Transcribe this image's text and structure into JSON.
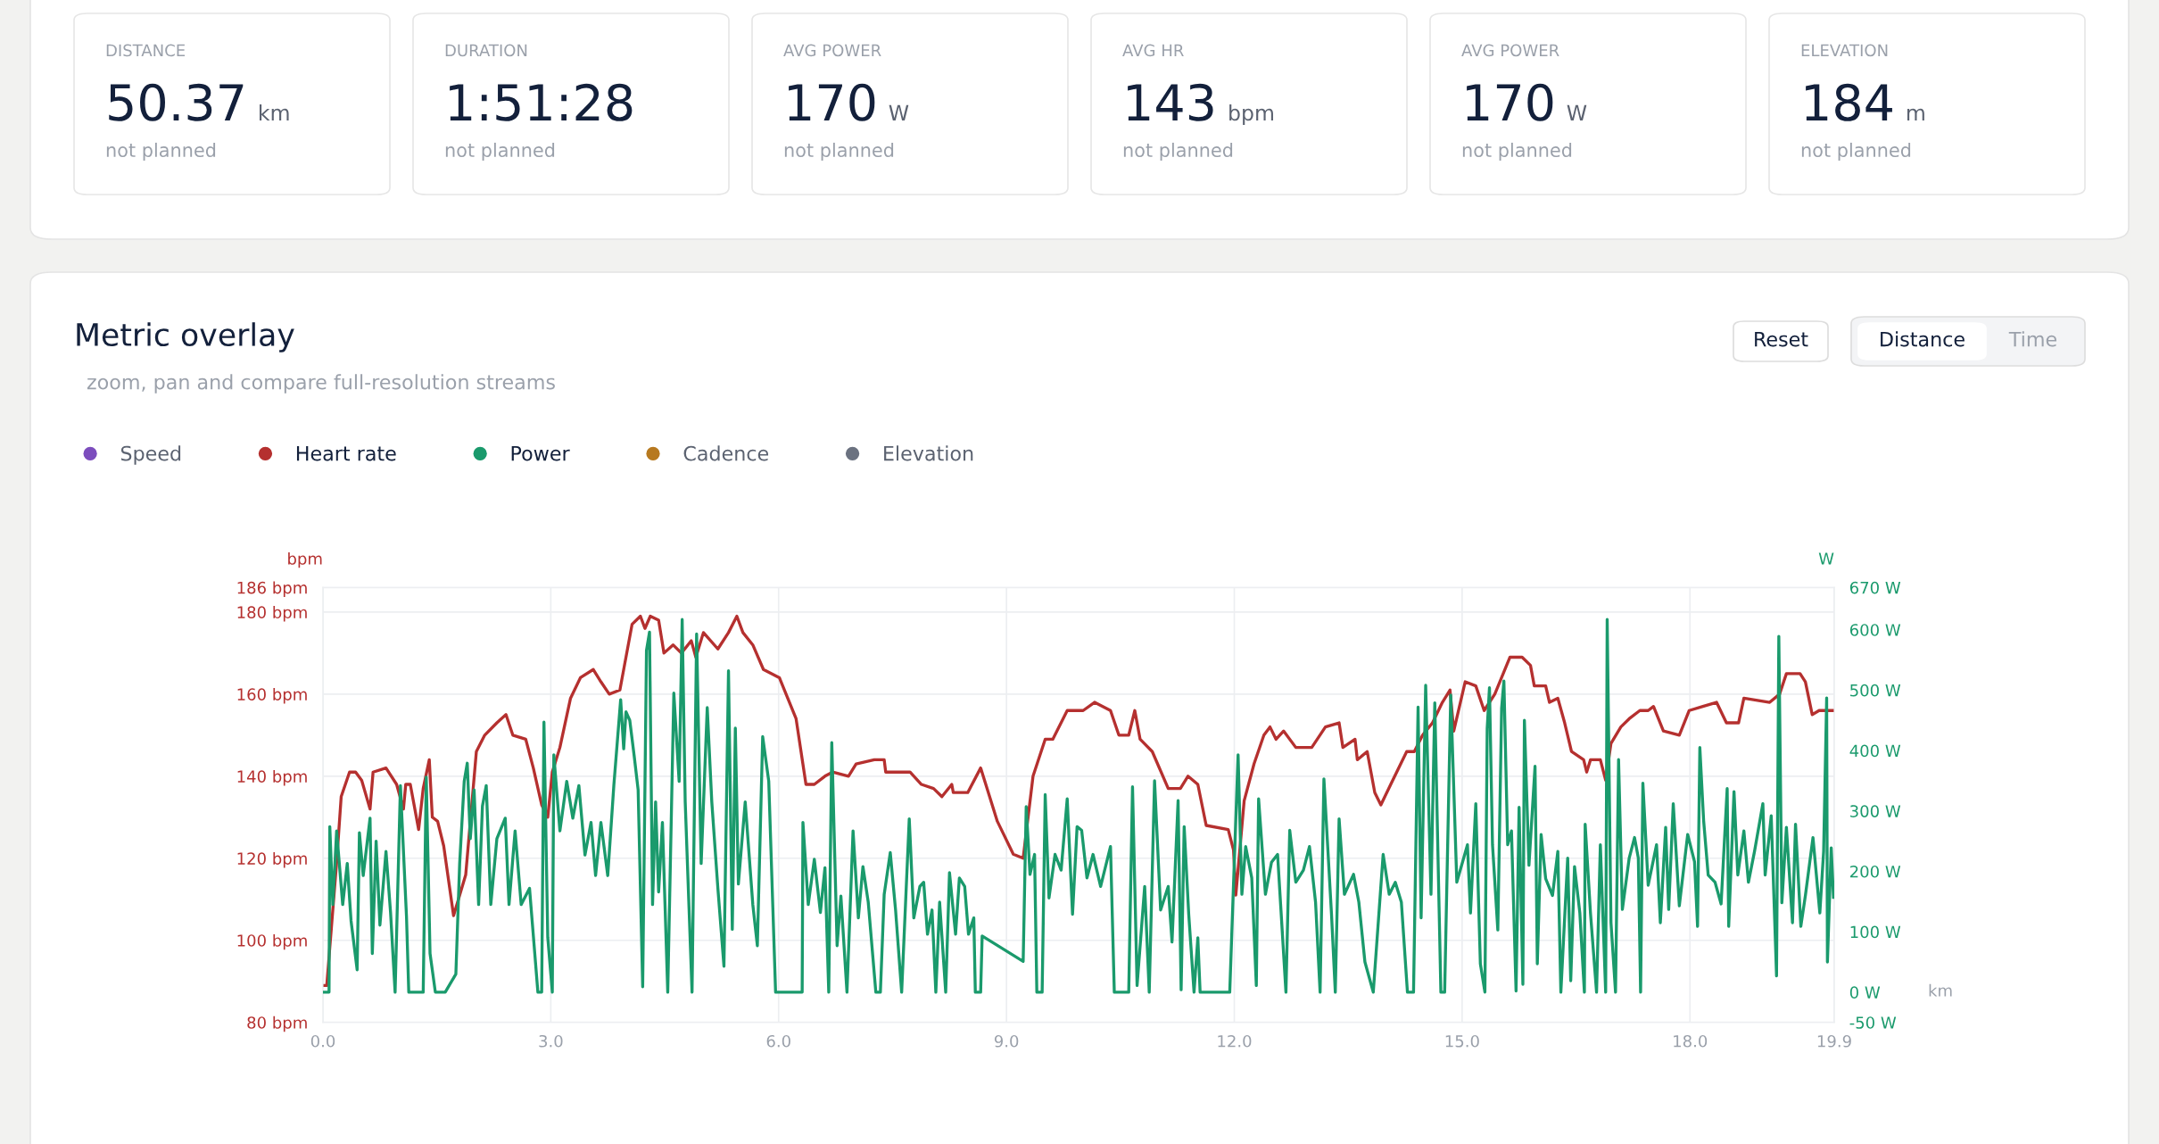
{
  "chart_data": [
    {
      "type": "other",
      "categories": [
        "DISTANCE",
        "DURATION",
        "AVG POWER",
        "AVG HR",
        "AVG POWER",
        "ELEVATION"
      ],
      "value_labels": [
        "50.37 km",
        "1:51:28",
        "170 W",
        "143 bpm",
        "170 W",
        "184 m"
      ],
      "annotations": [
        "not planned",
        "not planned",
        "not planned",
        "not planned",
        "not planned",
        "not planned"
      ]
    },
    {
      "type": "line",
      "title": "Metric overlay",
      "subtitle": "zoom, pan and compare full-resolution streams",
      "annotations": [
        "Reset",
        "Distance",
        "Time"
      ],
      "xlabel": "km",
      "ylabel": "bpm",
      "y2label": "W",
      "xlim": [
        0,
        19.9
      ],
      "xticks": [
        {
          "value": 0,
          "label": "0.0"
        },
        {
          "value": 3,
          "label": "3.0"
        },
        {
          "value": 6,
          "label": "6.0"
        },
        {
          "value": 9,
          "label": "9.0"
        },
        {
          "value": 12,
          "label": "12.0"
        },
        {
          "value": 15,
          "label": "15.0"
        },
        {
          "value": 18,
          "label": "18.0"
        },
        {
          "value": 19.9,
          "label": "19.9"
        }
      ],
      "ylim": [
        80,
        186
      ],
      "yticks": [
        {
          "value": 80,
          "label": "80 bpm"
        },
        {
          "value": 100,
          "label": "100 bpm"
        },
        {
          "value": 120,
          "label": "120 bpm"
        },
        {
          "value": 140,
          "label": "140 bpm"
        },
        {
          "value": 160,
          "label": "160 bpm"
        },
        {
          "value": 180,
          "label": "180 bpm"
        },
        {
          "value": 186,
          "label": "186 bpm"
        }
      ],
      "y2lim": [
        -50,
        670
      ],
      "y2ticks": [
        {
          "value": -50,
          "label": "-50 W"
        },
        {
          "value": 0,
          "label": "0 W"
        },
        {
          "value": 100,
          "label": "100 W"
        },
        {
          "value": 200,
          "label": "200 W"
        },
        {
          "value": 300,
          "label": "300 W"
        },
        {
          "value": 400,
          "label": "400 W"
        },
        {
          "value": 500,
          "label": "500 W"
        },
        {
          "value": 600,
          "label": "600 W"
        },
        {
          "value": 670,
          "label": "670 W"
        }
      ],
      "grid": true,
      "legend": "top left",
      "series": [
        {
          "name": "Speed",
          "color": "#7c4dbd"
        },
        {
          "name": "Heart rate",
          "color": "#b5302f",
          "x": [
            0,
            0.05,
            0.18,
            0.24,
            0.35,
            0.43,
            0.51,
            0.62,
            0.66,
            0.83,
            0.97,
            1.06,
            1.09,
            1.15,
            1.26,
            1.32,
            1.4,
            1.44,
            1.51,
            1.59,
            1.72,
            1.88,
            2.02,
            2.13,
            2.29,
            2.41,
            2.5,
            2.67,
            2.77,
            2.88,
            2.96,
            3.02,
            3.12,
            3.26,
            3.39,
            3.56,
            3.66,
            3.77,
            3.91,
            3.96,
            4.07,
            4.18,
            4.24,
            4.31,
            4.42,
            4.49,
            4.61,
            4.72,
            4.85,
            4.91,
            5.01,
            5.2,
            5.34,
            5.45,
            5.53,
            5.66,
            5.8,
            6.01,
            6.23,
            6.36,
            6.47,
            6.61,
            6.71,
            6.92,
            7.02,
            7.26,
            7.39,
            7.41,
            7.73,
            7.88,
            8.04,
            8.15,
            8.28,
            8.3,
            8.49,
            8.66,
            8.88,
            9.09,
            9.22,
            9.35,
            9.51,
            9.61,
            9.8,
            10.01,
            10.16,
            10.37,
            10.48,
            10.61,
            10.69,
            10.76,
            10.92,
            11.13,
            11.29,
            11.39,
            11.52,
            11.63,
            11.92,
            11.99,
            12.02,
            12.13,
            12.26,
            12.39,
            12.47,
            12.55,
            12.65,
            12.81,
            13.02,
            13.2,
            13.38,
            13.43,
            13.59,
            13.62,
            13.75,
            13.85,
            13.93,
            14.06,
            14.27,
            14.37,
            14.48,
            14.61,
            14.74,
            14.84,
            14.89,
            15.04,
            15.18,
            15.29,
            15.43,
            15.63,
            15.79,
            15.9,
            15.95,
            16.1,
            16.15,
            16.26,
            16.35,
            16.44,
            16.6,
            16.64,
            16.69,
            16.82,
            16.89,
            16.96,
            17.09,
            17.2,
            17.34,
            17.45,
            17.52,
            17.65,
            17.86,
            17.99,
            18.17,
            18.35,
            18.48,
            18.64,
            18.71,
            19.05,
            19.18,
            19.27,
            19.45,
            19.52,
            19.61,
            19.7,
            19.88
          ],
          "values": [
            89,
            89,
            119,
            135,
            141,
            141,
            139,
            132,
            141,
            142,
            138,
            132,
            138,
            138,
            127,
            137,
            144,
            130,
            129,
            123,
            106,
            116,
            146,
            150,
            153,
            155,
            150,
            149,
            142,
            133,
            130,
            141,
            147,
            159,
            164,
            166,
            163,
            160,
            161,
            166,
            177,
            179,
            176,
            179,
            178,
            170,
            172,
            170,
            173,
            169,
            175,
            171,
            175,
            179,
            175,
            172,
            166,
            164,
            154,
            138,
            138,
            140,
            141,
            140,
            143,
            144,
            144,
            141,
            141,
            138,
            137,
            135,
            138,
            136,
            136,
            142,
            129,
            121,
            120,
            140,
            149,
            149,
            156,
            156,
            158,
            156,
            150,
            150,
            156,
            149,
            146,
            137,
            137,
            140,
            138,
            128,
            127,
            122,
            111,
            134,
            143,
            150,
            152,
            149,
            151,
            147,
            147,
            152,
            153,
            147,
            149,
            144,
            146,
            136,
            133,
            138,
            146,
            146,
            150,
            153,
            158,
            161,
            151,
            163,
            162,
            156,
            160,
            169,
            169,
            167,
            162,
            162,
            158,
            159,
            153,
            146,
            144,
            141,
            144,
            144,
            139,
            148,
            152,
            154,
            156,
            156,
            157,
            151,
            150,
            156,
            157,
            158,
            153,
            153,
            159,
            158,
            160,
            165,
            165,
            163,
            155,
            156,
            156
          ]
        },
        {
          "name": "Power",
          "color": "#1a9a6c",
          "axis": "y2",
          "x": [
            0,
            0.08,
            0.09,
            0.13,
            0.18,
            0.26,
            0.32,
            0.37,
            0.45,
            0.48,
            0.53,
            0.62,
            0.65,
            0.7,
            0.75,
            0.83,
            0.89,
            0.95,
            1.02,
            1.1,
            1.13,
            1.32,
            1.36,
            1.41,
            1.48,
            1.61,
            1.75,
            1.8,
            1.86,
            1.9,
            1.94,
            1.99,
            2.05,
            2.1,
            2.15,
            2.21,
            2.29,
            2.4,
            2.45,
            2.53,
            2.61,
            2.72,
            2.83,
            2.88,
            2.91,
            2.96,
            3.02,
            3.04,
            3.12,
            3.21,
            3.29,
            3.37,
            3.45,
            3.53,
            3.59,
            3.66,
            3.75,
            3.83,
            3.92,
            3.96,
            3.99,
            4.04,
            4.1,
            4.15,
            4.21,
            4.26,
            4.3,
            4.34,
            4.38,
            4.42,
            4.47,
            4.54,
            4.62,
            4.69,
            4.73,
            4.77,
            4.86,
            4.92,
            4.98,
            5.06,
            5.12,
            5.2,
            5.28,
            5.34,
            5.39,
            5.43,
            5.47,
            5.56,
            5.66,
            5.72,
            5.79,
            5.87,
            5.96,
            6.31,
            6.32,
            6.39,
            6.47,
            6.55,
            6.61,
            6.66,
            6.7,
            6.77,
            6.82,
            6.9,
            6.98,
            7.05,
            7.11,
            7.18,
            7.28,
            7.34,
            7.39,
            7.47,
            7.54,
            7.62,
            7.72,
            7.78,
            7.86,
            7.91,
            7.96,
            8.02,
            8.07,
            8.12,
            8.2,
            8.25,
            8.33,
            8.38,
            8.45,
            8.5,
            8.57,
            8.59,
            8.66,
            8.68,
            9.22,
            9.26,
            9.31,
            9.37,
            9.4,
            9.47,
            9.51,
            9.56,
            9.64,
            9.72,
            9.8,
            9.87,
            9.93,
            9.99,
            10.06,
            10.14,
            10.24,
            10.37,
            10.42,
            10.61,
            10.66,
            10.72,
            10.82,
            10.88,
            10.95,
            11.03,
            11.13,
            11.18,
            11.26,
            11.3,
            11.34,
            11.4,
            11.47,
            11.52,
            11.55,
            11.94,
            11.99,
            12.05,
            12.1,
            12.15,
            12.23,
            12.29,
            12.32,
            12.41,
            12.49,
            12.57,
            12.68,
            12.73,
            12.81,
            12.91,
            12.99,
            13.07,
            13.13,
            13.18,
            13.28,
            13.33,
            13.38,
            13.45,
            13.57,
            13.64,
            13.72,
            13.83,
            13.96,
            14.04,
            14.12,
            14.2,
            14.28,
            14.36,
            14.42,
            14.46,
            14.52,
            14.59,
            14.64,
            14.72,
            14.77,
            14.85,
            14.93,
            15.07,
            15.11,
            15.18,
            15.24,
            15.3,
            15.33,
            15.36,
            15.4,
            15.47,
            15.52,
            15.55,
            15.6,
            15.65,
            15.71,
            15.75,
            15.8,
            15.82,
            15.88,
            15.96,
            15.99,
            16.04,
            16.1,
            16.19,
            16.26,
            16.3,
            16.39,
            16.43,
            16.48,
            16.55,
            16.61,
            16.62,
            16.69,
            16.77,
            16.82,
            16.89,
            16.91,
            16.96,
            17.02,
            17.06,
            17.11,
            17.2,
            17.27,
            17.32,
            17.35,
            17.38,
            17.45,
            17.56,
            17.61,
            17.68,
            17.72,
            17.78,
            17.86,
            17.97,
            18.06,
            18.1,
            18.13,
            18.18,
            18.24,
            18.33,
            18.41,
            18.49,
            18.51,
            18.58,
            18.63,
            18.71,
            18.77,
            18.85,
            18.96,
            18.99,
            19.07,
            19.14,
            19.17,
            19.21,
            19.27,
            19.35,
            19.39,
            19.46,
            19.52,
            19.62,
            19.71,
            19.76,
            19.8,
            19.81,
            19.86,
            19.89
          ],
          "values": [
            0,
            0,
            274,
            145,
            267,
            145,
            213,
            118,
            37,
            264,
            193,
            288,
            64,
            250,
            111,
            233,
            132,
            0,
            342,
            125,
            0,
            0,
            356,
            64,
            0,
            0,
            30,
            213,
            349,
            379,
            254,
            335,
            145,
            308,
            342,
            145,
            254,
            288,
            145,
            267,
            145,
            172,
            0,
            0,
            447,
            91,
            0,
            393,
            267,
            349,
            288,
            342,
            227,
            281,
            193,
            281,
            193,
            342,
            484,
            403,
            464,
            450,
            389,
            335,
            9,
            566,
            596,
            145,
            315,
            166,
            281,
            0,
            495,
            349,
            617,
            315,
            0,
            593,
            213,
            471,
            315,
            172,
            43,
            532,
            104,
            437,
            179,
            315,
            145,
            77,
            423,
            349,
            0,
            0,
            281,
            145,
            220,
            132,
            206,
            0,
            413,
            77,
            159,
            0,
            267,
            123,
            208,
            149,
            0,
            0,
            162,
            231,
            136,
            0,
            287,
            123,
            175,
            182,
            96,
            136,
            0,
            149,
            0,
            198,
            96,
            189,
            175,
            96,
            123,
            0,
            0,
            93,
            51,
            307,
            195,
            228,
            0,
            0,
            327,
            156,
            228,
            202,
            320,
            129,
            274,
            268,
            189,
            228,
            175,
            241,
            0,
            0,
            340,
            11,
            175,
            0,
            350,
            136,
            175,
            83,
            317,
            4,
            274,
            129,
            0,
            90,
            0,
            0,
            179,
            393,
            162,
            241,
            189,
            11,
            320,
            162,
            215,
            228,
            0,
            268,
            182,
            202,
            241,
            149,
            0,
            353,
            129,
            0,
            287,
            162,
            195,
            149,
            50,
            0,
            228,
            162,
            182,
            149,
            0,
            0,
            472,
            123,
            508,
            162,
            479,
            0,
            0,
            492,
            182,
            244,
            131,
            312,
            47,
            0,
            436,
            504,
            244,
            103,
            470,
            515,
            244,
            267,
            2,
            306,
            13,
            450,
            210,
            374,
            47,
            261,
            188,
            160,
            233,
            0,
            222,
            19,
            208,
            131,
            0,
            278,
            131,
            0,
            244,
            0,
            617,
            115,
            0,
            385,
            137,
            222,
            256,
            222,
            0,
            346,
            177,
            244,
            115,
            273,
            137,
            312,
            143,
            261,
            216,
            109,
            405,
            284,
            194,
            182,
            146,
            337,
            109,
            332,
            194,
            267,
            182,
            233,
            312,
            194,
            292,
            27,
            589,
            148,
            273,
            115,
            278,
            109,
            160,
            256,
            131,
            233,
            487,
            50,
            239,
            157
          ]
        },
        {
          "name": "Cadence",
          "color": "#b7791f"
        },
        {
          "name": "Elevation",
          "color": "#6b7280"
        }
      ]
    }
  ]
}
